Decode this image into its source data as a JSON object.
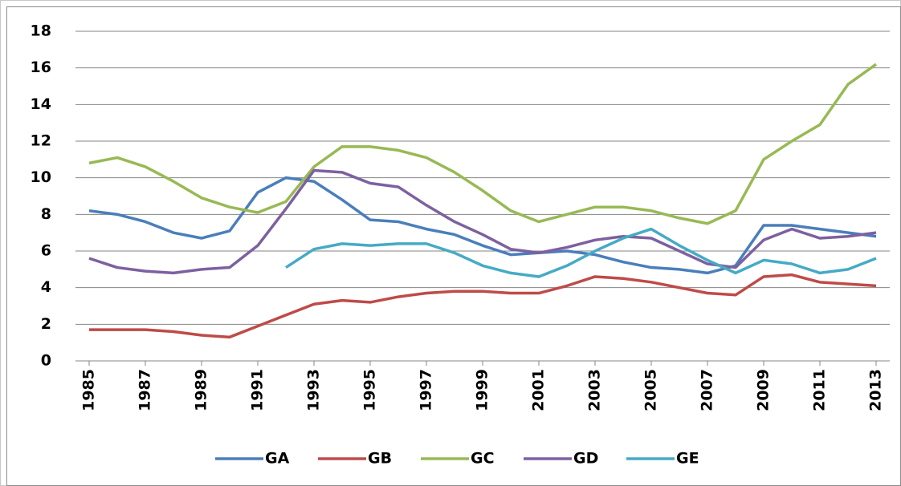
{
  "chart_data": {
    "type": "line",
    "x": [
      1985,
      1986,
      1987,
      1988,
      1989,
      1990,
      1991,
      1992,
      1993,
      1994,
      1995,
      1996,
      1997,
      1998,
      1999,
      2000,
      2001,
      2002,
      2003,
      2004,
      2005,
      2006,
      2007,
      2008,
      2009,
      2010,
      2011,
      2012,
      2013
    ],
    "xlim": [
      1985,
      2013
    ],
    "xticks": [
      1985,
      1987,
      1989,
      1991,
      1993,
      1995,
      1997,
      1999,
      2001,
      2003,
      2005,
      2007,
      2009,
      2011,
      2013
    ],
    "ylim": [
      0,
      18
    ],
    "yticks": [
      0,
      2,
      4,
      6,
      8,
      10,
      12,
      14,
      16,
      18
    ],
    "grid": true,
    "legend": "bottom",
    "series": [
      {
        "name": "GA",
        "color": "#4a7ebb",
        "values": [
          8.2,
          8.0,
          7.6,
          7.0,
          6.7,
          7.1,
          9.2,
          10.0,
          9.8,
          8.8,
          7.7,
          7.6,
          7.2,
          6.9,
          6.3,
          5.8,
          5.9,
          6.0,
          5.8,
          5.4,
          5.1,
          5.0,
          4.8,
          5.2,
          7.4,
          7.4,
          7.2,
          7.0,
          6.8
        ]
      },
      {
        "name": "GB",
        "color": "#be4b48",
        "values": [
          1.7,
          1.7,
          1.7,
          1.6,
          1.4,
          1.3,
          1.9,
          2.5,
          3.1,
          3.3,
          3.2,
          3.5,
          3.7,
          3.8,
          3.8,
          3.7,
          3.7,
          4.1,
          4.6,
          4.5,
          4.3,
          4.0,
          3.7,
          3.6,
          4.6,
          4.7,
          4.3,
          4.2,
          4.1
        ]
      },
      {
        "name": "GC",
        "color": "#98b954",
        "values": [
          10.8,
          11.1,
          10.6,
          9.8,
          8.9,
          8.4,
          8.1,
          8.7,
          10.6,
          11.7,
          11.7,
          11.5,
          11.1,
          10.3,
          9.3,
          8.2,
          7.6,
          8.0,
          8.4,
          8.4,
          8.2,
          7.8,
          7.5,
          8.2,
          11.0,
          12.0,
          12.9,
          15.1,
          16.2
        ]
      },
      {
        "name": "GD",
        "color": "#7d60a0",
        "values": [
          5.6,
          5.1,
          4.9,
          4.8,
          5.0,
          5.1,
          6.3,
          8.3,
          10.4,
          10.3,
          9.7,
          9.5,
          8.5,
          7.6,
          6.9,
          6.1,
          5.9,
          6.2,
          6.6,
          6.8,
          6.7,
          6.0,
          5.3,
          5.1,
          6.6,
          7.2,
          6.7,
          6.8,
          7.0
        ]
      },
      {
        "name": "GE",
        "color": "#46aac5",
        "values": [
          null,
          null,
          null,
          null,
          null,
          null,
          null,
          5.1,
          6.1,
          6.4,
          6.3,
          6.4,
          6.4,
          5.9,
          5.2,
          4.8,
          4.6,
          5.2,
          6.0,
          6.7,
          7.2,
          6.3,
          5.5,
          4.8,
          5.5,
          5.3,
          4.8,
          5.0,
          5.6
        ]
      }
    ]
  }
}
